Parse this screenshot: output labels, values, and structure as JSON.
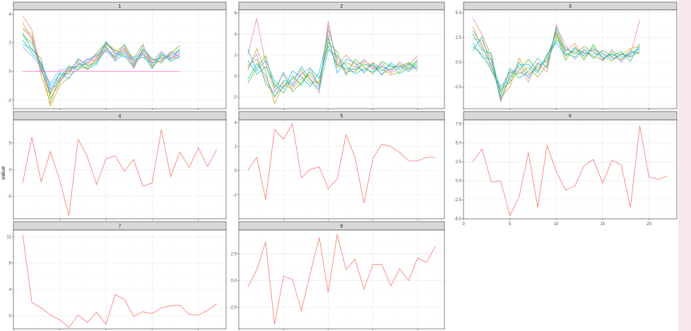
{
  "chart_data": {
    "type": "line",
    "facet_layout": "3 columns x 3 rows, free y scales",
    "ylabel": "value",
    "xlabel": "",
    "shared_x_ticks": [
      0,
      5,
      10,
      15,
      20
    ],
    "grid": true,
    "theme": "ggplot2 theme_bw",
    "colors": {
      "single_series": "#f8766d",
      "strip_fill": "#d9d9d9",
      "multi_palette": [
        "#f8766d",
        "#d89000",
        "#a3a500",
        "#39b600",
        "#00bf7d",
        "#00bfc4",
        "#00b0f6",
        "#9590ff",
        "#e76bf3",
        "#ff62bc"
      ]
    },
    "panels": [
      {
        "label": "1",
        "ylim": [
          -2.6,
          4.3
        ],
        "yticks": [
          -2,
          0,
          2,
          4
        ],
        "series": [
          {
            "values": [
              3.9,
              2.9,
              0.1,
              -1.6,
              -0.6,
              0.0,
              0.5,
              0.5,
              1.0,
              2.0,
              1.2,
              1.6,
              0.7,
              1.2,
              0.6,
              1.0,
              0.9,
              1.2
            ]
          },
          {
            "values": [
              3.4,
              2.2,
              0.4,
              -2.4,
              -1.0,
              -0.4,
              0.2,
              0.3,
              0.9,
              1.9,
              1.4,
              1.8,
              0.5,
              1.4,
              0.4,
              0.8,
              1.2,
              1.5
            ]
          },
          {
            "values": [
              3.0,
              2.6,
              -0.3,
              -2.2,
              -0.4,
              0.1,
              0.7,
              0.1,
              0.8,
              1.7,
              0.9,
              1.5,
              0.9,
              1.9,
              0.3,
              1.1,
              1.0,
              0.9
            ]
          },
          {
            "values": [
              2.7,
              1.5,
              0.9,
              -1.9,
              -0.8,
              0.3,
              0.3,
              0.6,
              1.3,
              2.0,
              1.5,
              1.1,
              0.3,
              1.6,
              0.9,
              0.6,
              1.3,
              1.8
            ]
          },
          {
            "values": [
              2.5,
              2.0,
              0.2,
              -1.5,
              -0.1,
              -0.2,
              0.9,
              0.4,
              0.6,
              1.5,
              1.0,
              1.9,
              0.8,
              1.0,
              0.5,
              1.3,
              0.7,
              1.1
            ]
          },
          {
            "values": [
              2.2,
              1.3,
              0.5,
              -1.2,
              -0.5,
              0.4,
              0.1,
              0.8,
              1.1,
              1.8,
              0.7,
              1.3,
              0.4,
              1.5,
              0.8,
              0.9,
              1.1,
              1.4
            ]
          },
          {
            "values": [
              1.9,
              1.6,
              0.6,
              -1.0,
              -0.2,
              -0.5,
              0.6,
              0.2,
              0.5,
              2.1,
              1.3,
              1.0,
              1.0,
              1.2,
              0.2,
              1.2,
              0.8,
              1.6
            ]
          },
          {
            "values": [
              1.7,
              1.1,
              0.3,
              -0.8,
              0.1,
              0.2,
              0.4,
              0.9,
              0.7,
              1.6,
              1.1,
              1.4,
              0.6,
              1.8,
              0.6,
              0.7,
              1.4,
              1.0
            ]
          },
          {
            "values": [
              2.9,
              2.4,
              0.0,
              -1.3,
              -0.7,
              0.0,
              0.8,
              0.6,
              1.2,
              1.4,
              0.8,
              1.7,
              0.2,
              1.3,
              0.7,
              1.4,
              0.9,
              1.3
            ]
          },
          {
            "values": [
              0.0,
              0.0,
              0.0,
              0.0,
              0.0,
              0.0,
              0.0,
              0.0,
              0.0,
              0.0,
              0.0,
              0.0,
              0.0,
              0.0,
              0.0,
              0.0,
              0.0,
              0.0
            ]
          }
        ]
      },
      {
        "label": "2",
        "ylim": [
          -3.1,
          6.3
        ],
        "yticks": [
          -2,
          0,
          2,
          4,
          6
        ],
        "series": [
          {
            "values": [
              2.0,
              5.5,
              1.2,
              -1.4,
              -0.6,
              -0.9,
              0.3,
              -0.2,
              -1.6,
              5.2,
              1.0,
              2.0,
              1.1,
              1.3,
              0.6,
              1.0,
              0.3,
              0.8,
              1.1,
              1.9
            ]
          },
          {
            "values": [
              0.5,
              2.6,
              0.4,
              -2.6,
              -0.8,
              -1.2,
              -0.2,
              0.1,
              -1.0,
              4.4,
              1.7,
              0.5,
              0.4,
              1.5,
              0.9,
              0.2,
              0.7,
              1.2,
              0.6,
              0.9
            ]
          },
          {
            "values": [
              1.0,
              1.6,
              -0.5,
              -1.9,
              -1.0,
              -0.3,
              0.6,
              -0.7,
              -0.5,
              3.6,
              0.8,
              1.3,
              0.9,
              0.5,
              1.3,
              0.7,
              0.1,
              0.4,
              1.0,
              1.4
            ]
          },
          {
            "values": [
              -0.7,
              0.8,
              1.9,
              -1.1,
              0.2,
              -1.5,
              -0.6,
              0.4,
              -0.8,
              3.2,
              2.3,
              0.1,
              1.6,
              0.9,
              0.2,
              1.4,
              0.9,
              0.9,
              1.3,
              0.7
            ]
          },
          {
            "values": [
              1.5,
              0.2,
              0.9,
              -0.8,
              -1.6,
              0.0,
              -0.9,
              0.7,
              -0.2,
              2.9,
              1.1,
              0.7,
              0.6,
              1.1,
              1.0,
              0.5,
              1.1,
              0.2,
              0.8,
              1.2
            ]
          },
          {
            "values": [
              -0.3,
              1.2,
              0.0,
              -2.0,
              -0.4,
              -0.7,
              0.9,
              -0.4,
              -1.3,
              2.5,
              1.9,
              1.0,
              0.2,
              0.7,
              0.4,
              0.9,
              0.6,
              1.0,
              0.4,
              1.6
            ]
          },
          {
            "values": [
              2.6,
              0.5,
              1.5,
              -0.5,
              -1.2,
              0.5,
              -0.1,
              -1.0,
              0.4,
              3.9,
              0.3,
              1.6,
              1.3,
              0.3,
              1.2,
              0.1,
              1.3,
              0.6,
              1.2,
              0.5
            ]
          },
          {
            "values": [
              0.8,
              2.1,
              -0.8,
              -1.6,
              0.4,
              -1.0,
              0.2,
              0.8,
              -1.1,
              4.8,
              1.4,
              0.3,
              0.8,
              1.6,
              0.7,
              1.2,
              0.4,
              1.4,
              0.7,
              1.0
            ]
          }
        ]
      },
      {
        "label": "3",
        "ylim": [
          -4.7,
          5.3
        ],
        "yticks": [
          -2.5,
          0.0,
          2.5,
          5.0
        ],
        "series": [
          {
            "values": [
              4.5,
              2.8,
              0.6,
              -4.0,
              -1.5,
              -0.5,
              -2.0,
              0.0,
              -1.0,
              3.8,
              1.1,
              1.9,
              0.5,
              1.3,
              0.9,
              0.5,
              0.3,
              0.8,
              4.3
            ]
          },
          {
            "values": [
              3.6,
              1.5,
              -0.2,
              -3.6,
              -2.5,
              0.4,
              -1.2,
              -0.6,
              0.3,
              3.1,
              0.6,
              1.2,
              1.0,
              0.6,
              0.2,
              1.1,
              0.7,
              1.4,
              1.6
            ]
          },
          {
            "values": [
              2.4,
              2.2,
              0.2,
              -3.0,
              -1.0,
              -1.2,
              -0.5,
              -1.5,
              -0.2,
              2.6,
              1.5,
              0.8,
              1.6,
              1.0,
              0.6,
              0.1,
              0.9,
              0.5,
              1.1
            ]
          },
          {
            "values": [
              1.6,
              0.8,
              -0.8,
              -2.8,
              -2.0,
              -0.8,
              0.3,
              -0.9,
              0.6,
              2.9,
              0.2,
              1.6,
              0.2,
              1.8,
              0.3,
              0.9,
              0.2,
              1.2,
              0.8
            ]
          },
          {
            "values": [
              2.9,
              1.2,
              0.9,
              -3.4,
              -0.6,
              -1.6,
              -0.9,
              0.4,
              -0.6,
              3.4,
              0.9,
              0.5,
              1.3,
              0.4,
              1.2,
              0.6,
              1.1,
              0.1,
              1.9
            ]
          },
          {
            "values": [
              1.2,
              2.6,
              -0.5,
              -2.4,
              -1.8,
              0.0,
              -1.6,
              -0.3,
              0.1,
              2.3,
              1.3,
              1.0,
              0.7,
              1.5,
              0.4,
              0.8,
              0.5,
              0.9,
              1.3
            ]
          },
          {
            "values": [
              2.0,
              0.5,
              0.3,
              -3.8,
              -1.3,
              -0.3,
              -0.2,
              -1.1,
              0.8,
              2.0,
              0.7,
              1.4,
              0.9,
              0.8,
              0.8,
              0.3,
              0.8,
              0.6,
              1.5
            ]
          },
          {
            "values": [
              3.2,
              1.8,
              -0.9,
              -2.6,
              -0.9,
              -1.0,
              -1.4,
              -0.1,
              -0.4,
              3.6,
              1.8,
              0.3,
              1.2,
              1.2,
              0.1,
              1.3,
              0.0,
              1.0,
              1.0
            ]
          }
        ]
      },
      {
        "label": "4",
        "ylim": [
          -9.2,
          9.3
        ],
        "yticks": [
          -5,
          0,
          5
        ],
        "series": [
          {
            "values": [
              -2.5,
              6.1,
              -2.3,
              3.4,
              -1.9,
              -8.6,
              5.7,
              2.4,
              -2.8,
              2.0,
              2.6,
              -0.3,
              1.9,
              -3.1,
              -2.5,
              7.5,
              -1.3,
              3.3,
              0.4,
              4.1,
              0.6,
              3.8
            ]
          }
        ]
      },
      {
        "label": "5",
        "ylim": [
          -4.0,
          4.2
        ],
        "yticks": [
          -2,
          0,
          2,
          4
        ],
        "series": [
          {
            "values": [
              0.0,
              1.1,
              -2.4,
              3.4,
              2.6,
              3.9,
              -0.6,
              0.1,
              0.3,
              -1.5,
              -0.7,
              3.0,
              1.1,
              -2.7,
              1.0,
              2.2,
              2.0,
              1.5,
              0.8,
              0.8,
              1.1,
              1.1
            ]
          }
        ]
      },
      {
        "label": "6",
        "ylim": [
          -5.0,
          8.0
        ],
        "yticks": [
          -5.0,
          -2.5,
          0.0,
          2.5,
          5.0,
          7.5
        ],
        "series": [
          {
            "values": [
              2.5,
              4.2,
              -0.2,
              0.0,
              -4.6,
              -2.1,
              3.7,
              -3.5,
              4.7,
              1.2,
              -1.2,
              -0.7,
              2.0,
              2.8,
              -0.3,
              2.7,
              2.1,
              -3.5,
              7.2,
              0.5,
              0.2,
              0.6
            ]
          }
        ]
      },
      {
        "label": "7",
        "ylim": [
          -2.0,
          13.0
        ],
        "yticks": [
          0,
          4,
          8,
          12
        ],
        "series": [
          {
            "values": [
              12.3,
              2.0,
              1.2,
              0.1,
              -0.6,
              -1.8,
              0.1,
              -1.0,
              0.5,
              -1.3,
              3.2,
              2.5,
              -0.1,
              0.6,
              0.3,
              1.2,
              1.5,
              1.6,
              0.2,
              0.1,
              0.8,
              1.8
            ]
          }
        ]
      },
      {
        "label": "8",
        "ylim": [
          -4.5,
          4.7
        ],
        "yticks": [
          -2.5,
          0.0,
          2.5
        ],
        "series": [
          {
            "values": [
              -0.6,
              1.0,
              3.6,
              -4.1,
              0.4,
              0.1,
              -2.8,
              0.7,
              4.0,
              -1.1,
              4.3,
              1.0,
              2.0,
              -0.8,
              1.5,
              1.5,
              -0.5,
              1.1,
              0.0,
              2.1,
              1.7,
              3.2
            ]
          }
        ]
      }
    ]
  }
}
